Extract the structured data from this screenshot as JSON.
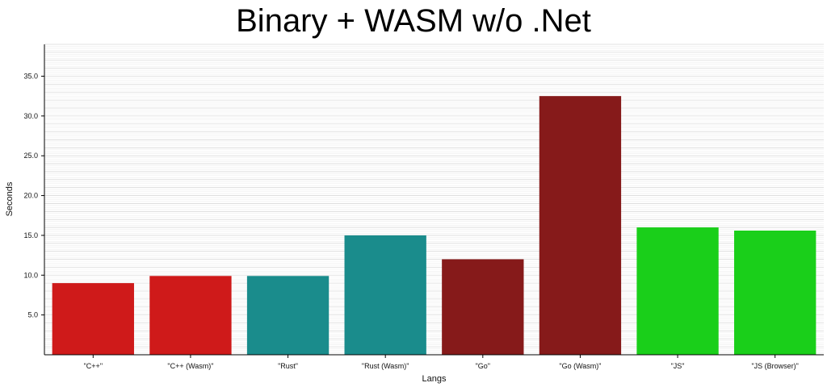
{
  "chart_data": {
    "type": "bar",
    "title": "Binary + WASM w/o .Net",
    "xlabel": "Langs",
    "ylabel": "Seconds",
    "categories": [
      "\"C++\"",
      "\"C++ (Wasm)\"",
      "\"Rust\"",
      "\"Rust (Wasm)\"",
      "\"Go\"",
      "\"Go (Wasm)\"",
      "\"JS\"",
      "\"JS (Browser)\""
    ],
    "values": [
      9.0,
      9.9,
      9.9,
      15.0,
      12.0,
      32.5,
      16.0,
      15.6
    ],
    "colors": [
      "#cf1a1a",
      "#cf1a1a",
      "#1a8c8c",
      "#1a8c8c",
      "#861a1a",
      "#861a1a",
      "#1acf1a",
      "#1acf1a"
    ],
    "yticks": [
      "5.0",
      "10.0",
      "15.0",
      "20.0",
      "25.0",
      "30.0",
      "35.0"
    ],
    "ylim": [
      0,
      39
    ],
    "grid": true
  }
}
